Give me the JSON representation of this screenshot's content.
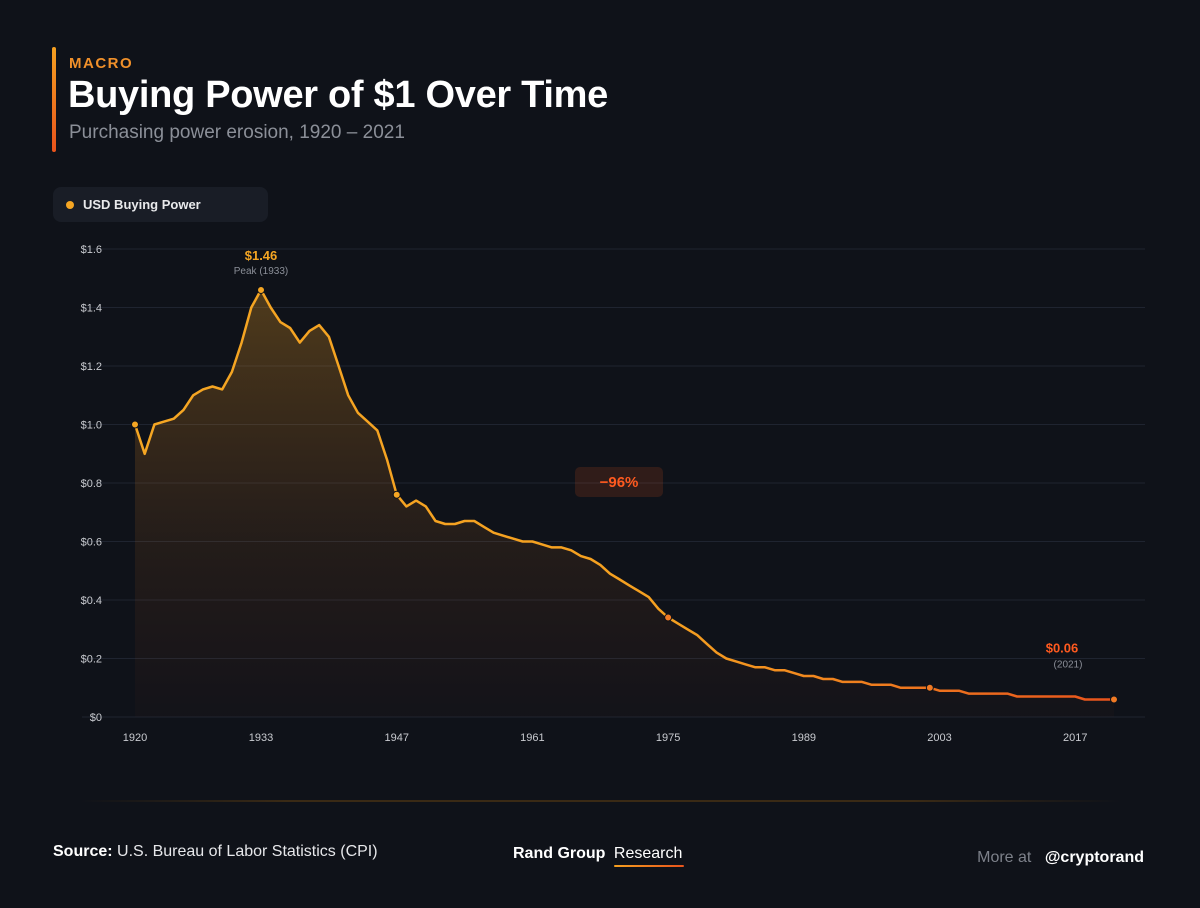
{
  "header": {
    "kicker": "MACRO",
    "title": "Buying Power of $1 Over Time",
    "subtitle": "Purchasing power erosion, 1920 – 2021"
  },
  "legend": {
    "label": "USD Buying Power",
    "color": "#f5a623"
  },
  "footer": {
    "source_label": "Source:",
    "source_text": "U.S. Bureau of Labor Statistics (CPI)",
    "brand_name": "Rand Group",
    "brand_sub": "Research",
    "more_label": "More at",
    "handle": "@cryptorand"
  },
  "colors": {
    "line_start": "#f5a623",
    "line_end": "#e8531c",
    "grid": "#1f2430",
    "badge": "#ff5a1f"
  },
  "chart_data": {
    "type": "area",
    "title": "Buying Power of $1 Over Time",
    "xlabel": "",
    "ylabel": "",
    "grid": true,
    "legend_position": "top-left",
    "xlim": [
      1920,
      2021
    ],
    "ylim": [
      0,
      1.6
    ],
    "x_ticks": [
      1920,
      1933,
      1947,
      1961,
      1975,
      1989,
      2003,
      2017
    ],
    "y_ticks": [
      0,
      0.2,
      0.4,
      0.6,
      0.8,
      1.0,
      1.2,
      1.4,
      1.6
    ],
    "y_tick_labels": [
      "$0",
      "$0.2",
      "$0.4",
      "$0.6",
      "$0.8",
      "$1.0",
      "$1.2",
      "$1.4",
      "$1.6"
    ],
    "series": [
      {
        "name": "USD Buying Power",
        "x": [
          1920,
          1921,
          1922,
          1923,
          1924,
          1925,
          1926,
          1927,
          1928,
          1929,
          1930,
          1931,
          1932,
          1933,
          1934,
          1935,
          1936,
          1937,
          1938,
          1939,
          1940,
          1941,
          1942,
          1943,
          1944,
          1945,
          1946,
          1947,
          1948,
          1949,
          1950,
          1951,
          1952,
          1953,
          1954,
          1955,
          1956,
          1957,
          1958,
          1959,
          1960,
          1961,
          1962,
          1963,
          1964,
          1965,
          1966,
          1967,
          1968,
          1969,
          1970,
          1971,
          1972,
          1973,
          1974,
          1975,
          1976,
          1977,
          1978,
          1979,
          1980,
          1981,
          1982,
          1983,
          1984,
          1985,
          1986,
          1987,
          1988,
          1989,
          1990,
          1991,
          1992,
          1993,
          1994,
          1995,
          1996,
          1997,
          1998,
          1999,
          2000,
          2001,
          2002,
          2003,
          2004,
          2005,
          2006,
          2007,
          2008,
          2009,
          2010,
          2011,
          2012,
          2013,
          2014,
          2015,
          2016,
          2017,
          2018,
          2019,
          2020,
          2021
        ],
        "values": [
          1.0,
          0.9,
          1.0,
          1.01,
          1.02,
          1.05,
          1.1,
          1.12,
          1.13,
          1.12,
          1.18,
          1.28,
          1.4,
          1.46,
          1.4,
          1.35,
          1.33,
          1.28,
          1.32,
          1.34,
          1.3,
          1.2,
          1.1,
          1.04,
          1.01,
          0.98,
          0.88,
          0.76,
          0.72,
          0.74,
          0.72,
          0.67,
          0.66,
          0.66,
          0.67,
          0.67,
          0.65,
          0.63,
          0.62,
          0.61,
          0.6,
          0.6,
          0.59,
          0.58,
          0.58,
          0.57,
          0.55,
          0.54,
          0.52,
          0.49,
          0.47,
          0.45,
          0.43,
          0.41,
          0.37,
          0.34,
          0.32,
          0.3,
          0.28,
          0.25,
          0.22,
          0.2,
          0.19,
          0.18,
          0.17,
          0.17,
          0.16,
          0.16,
          0.15,
          0.14,
          0.14,
          0.13,
          0.13,
          0.12,
          0.12,
          0.12,
          0.11,
          0.11,
          0.11,
          0.1,
          0.1,
          0.1,
          0.1,
          0.09,
          0.09,
          0.09,
          0.08,
          0.08,
          0.08,
          0.08,
          0.08,
          0.07,
          0.07,
          0.07,
          0.07,
          0.07,
          0.07,
          0.07,
          0.06,
          0.06,
          0.06,
          0.06
        ]
      }
    ],
    "markers": [
      {
        "x": 1920,
        "y": 1.0
      },
      {
        "x": 1933,
        "y": 1.46
      },
      {
        "x": 1947,
        "y": 0.76
      },
      {
        "x": 1975,
        "y": 0.34
      },
      {
        "x": 2002,
        "y": 0.1
      },
      {
        "x": 2021,
        "y": 0.06
      }
    ],
    "annotations": [
      {
        "id": "peak",
        "x": 1933,
        "y": 1.46,
        "label": "$1.46",
        "sublabel": "Peak (1933)"
      },
      {
        "id": "end",
        "x": 2021,
        "y": 0.06,
        "label": "$0.06",
        "sublabel": "(2021)"
      },
      {
        "id": "change",
        "label": "−96%"
      }
    ]
  }
}
